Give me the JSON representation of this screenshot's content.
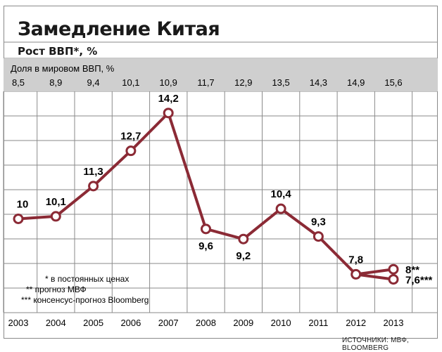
{
  "header": {
    "title": "Замедление Китая",
    "subtitle": "Рост ВВП*, %"
  },
  "share_band": {
    "label": "Доля в мировом ВВП, %",
    "values": [
      "8,5",
      "8,9",
      "9,4",
      "10,1",
      "10,9",
      "11,7",
      "12,9",
      "13,5",
      "14,3",
      "14,9",
      "15,6"
    ]
  },
  "footnotes": [
    "* в постоянных ценах",
    "** прогноз МВФ",
    "*** консенсус-прогноз Bloomberg"
  ],
  "source": "ИСТОЧНИКИ: МВФ, BLOOMBERG",
  "colors": {
    "line": "#8b2a35",
    "band": "#cfcfcf",
    "grid": "#8a8a8a",
    "marker_fill": "#ffffff"
  },
  "chart_data": {
    "type": "line",
    "title": "Замедление Китая",
    "subtitle": "Рост ВВП*, %",
    "categories": [
      "2003",
      "2004",
      "2005",
      "2006",
      "2007",
      "2008",
      "2009",
      "2010",
      "2011",
      "2012",
      "2013"
    ],
    "series": [
      {
        "values": [
          10,
          10.1,
          11.3,
          12.7,
          14.2,
          9.6,
          9.2,
          10.4,
          9.3,
          7.8,
          8
        ],
        "labels": [
          "10",
          "10,1",
          "11,3",
          "12,7",
          "14,2",
          "9,6",
          "9,2",
          "10,4",
          "9,3",
          "7,8",
          "8**"
        ]
      },
      {
        "values": [
          null,
          null,
          null,
          null,
          null,
          null,
          null,
          null,
          null,
          7.8,
          7.6
        ],
        "labels": [
          "",
          "",
          "",
          "",
          "",
          "",
          "",
          "",
          "",
          "",
          "7,6***"
        ]
      }
    ],
    "ylim": [
      5.5,
      16.5
    ],
    "grid": true
  }
}
